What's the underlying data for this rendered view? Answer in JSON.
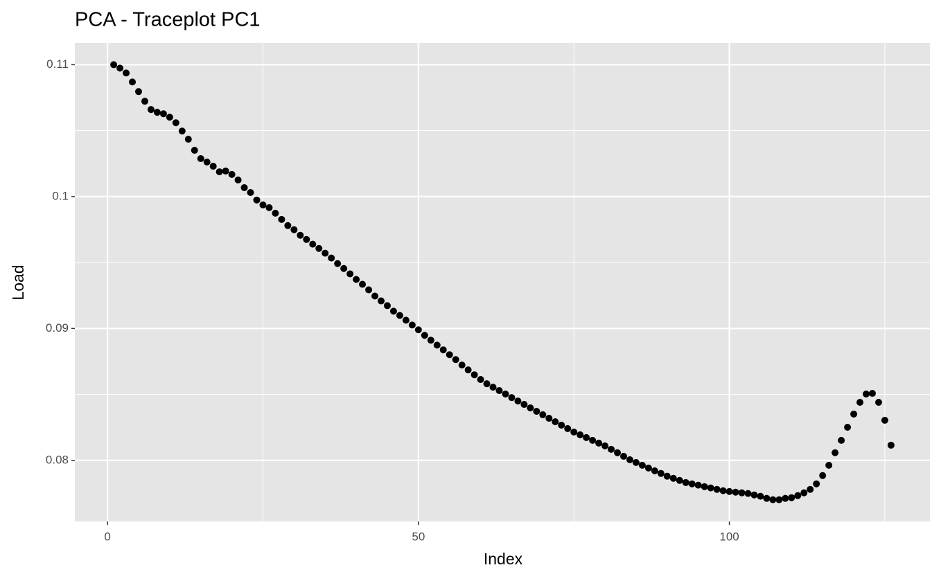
{
  "chart_data": {
    "type": "scatter",
    "title": "PCA - Traceplot PC1",
    "x_label": "Index",
    "y_label": "Load",
    "color": "#000000",
    "panel_color": "#e5e5e5",
    "grid": true,
    "xlim": [
      -5.25,
      132.25
    ],
    "ylim": [
      0.07537,
      0.11165
    ],
    "xticks": [
      0,
      50,
      100
    ],
    "yticks": [
      0.08,
      0.09,
      0.1,
      0.11
    ],
    "xminor": [
      25,
      75,
      125
    ],
    "yminor": [
      0.085,
      0.095,
      0.105
    ],
    "x": [
      1,
      2,
      3,
      4,
      5,
      6,
      7,
      8,
      9,
      10,
      11,
      12,
      13,
      14,
      15,
      16,
      17,
      18,
      19,
      20,
      21,
      22,
      23,
      24,
      25,
      26,
      27,
      28,
      29,
      30,
      31,
      32,
      33,
      34,
      35,
      36,
      37,
      38,
      39,
      40,
      41,
      42,
      43,
      44,
      45,
      46,
      47,
      48,
      49,
      50,
      51,
      52,
      53,
      54,
      55,
      56,
      57,
      58,
      59,
      60,
      61,
      62,
      63,
      64,
      65,
      66,
      67,
      68,
      69,
      70,
      71,
      72,
      73,
      74,
      75,
      76,
      77,
      78,
      79,
      80,
      81,
      82,
      83,
      84,
      85,
      86,
      87,
      88,
      89,
      90,
      91,
      92,
      93,
      94,
      95,
      96,
      97,
      98,
      99,
      100,
      101,
      102,
      103,
      104,
      105,
      106,
      107,
      108,
      109,
      110,
      111,
      112,
      113,
      114,
      115,
      116,
      117,
      118,
      119,
      120,
      121,
      122,
      123,
      124,
      125,
      126
    ],
    "values": [
      0.11,
      0.10974,
      0.10937,
      0.10869,
      0.10796,
      0.10723,
      0.1066,
      0.10639,
      0.10628,
      0.10602,
      0.1056,
      0.10497,
      0.10435,
      0.10351,
      0.10288,
      0.10262,
      0.1023,
      0.10188,
      0.10194,
      0.10168,
      0.10126,
      0.10068,
      0.10031,
      0.09974,
      0.09937,
      0.09916,
      0.09874,
      0.09827,
      0.0978,
      0.09749,
      0.09707,
      0.09675,
      0.09639,
      0.09607,
      0.09571,
      0.09534,
      0.09492,
      0.09455,
      0.09414,
      0.09372,
      0.09335,
      0.09293,
      0.09246,
      0.09209,
      0.09173,
      0.09131,
      0.09099,
      0.09063,
      0.09026,
      0.0899,
      0.08948,
      0.08911,
      0.08874,
      0.08838,
      0.08801,
      0.08764,
      0.08723,
      0.08686,
      0.08649,
      0.08613,
      0.08581,
      0.08555,
      0.08529,
      0.08503,
      0.08476,
      0.0845,
      0.08424,
      0.08398,
      0.08372,
      0.08346,
      0.08319,
      0.08293,
      0.08267,
      0.08241,
      0.08215,
      0.08194,
      0.08173,
      0.08152,
      0.08131,
      0.0811,
      0.08084,
      0.08058,
      0.08031,
      0.08005,
      0.07984,
      0.07963,
      0.07942,
      0.07921,
      0.07901,
      0.0788,
      0.07864,
      0.07848,
      0.07832,
      0.07822,
      0.07812,
      0.07801,
      0.07791,
      0.0778,
      0.0777,
      0.07764,
      0.07759,
      0.07754,
      0.07749,
      0.07738,
      0.07728,
      0.07712,
      0.07702,
      0.07702,
      0.07712,
      0.07717,
      0.07733,
      0.07754,
      0.0778,
      0.07822,
      0.07885,
      0.07963,
      0.08058,
      0.08152,
      0.08251,
      0.08351,
      0.0844,
      0.08503,
      0.08508,
      0.0844,
      0.08304,
      0.08115
    ]
  }
}
